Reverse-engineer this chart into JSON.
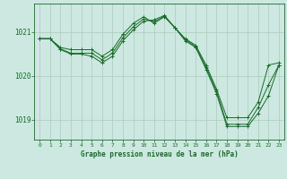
{
  "background_color": "#cce8e0",
  "grid_color": "#aaccbb",
  "line_color": "#1a6b2a",
  "title": "Graphe pression niveau de la mer (hPa)",
  "xlim": [
    -0.5,
    23.5
  ],
  "ylim": [
    1018.55,
    1021.65
  ],
  "yticks": [
    1019,
    1020,
    1021
  ],
  "xticks": [
    0,
    1,
    2,
    3,
    4,
    5,
    6,
    7,
    8,
    9,
    10,
    11,
    12,
    13,
    14,
    15,
    16,
    17,
    18,
    19,
    20,
    21,
    22,
    23
  ],
  "series1": {
    "x": [
      0,
      1,
      2,
      3,
      4,
      5,
      6,
      7,
      8,
      9,
      10,
      11,
      12,
      13,
      14,
      15,
      16,
      17,
      18,
      19,
      20,
      21,
      22,
      23
    ],
    "y": [
      1020.85,
      1020.85,
      1020.65,
      1020.6,
      1020.6,
      1020.6,
      1020.45,
      1020.6,
      1020.95,
      1021.2,
      1021.35,
      1021.2,
      1021.35,
      1021.1,
      1020.85,
      1020.7,
      1020.25,
      1019.7,
      1019.05,
      1019.05,
      1019.05,
      1019.4,
      1020.25,
      1020.3
    ]
  },
  "series2": {
    "x": [
      0,
      1,
      2,
      3,
      4,
      5,
      6,
      7,
      8,
      9,
      10,
      11,
      12,
      13,
      14,
      15,
      16,
      17,
      18,
      19,
      20,
      21,
      22,
      23
    ],
    "y": [
      1020.85,
      1020.85,
      1020.6,
      1020.5,
      1020.5,
      1020.45,
      1020.3,
      1020.45,
      1020.8,
      1021.05,
      1021.25,
      1021.28,
      1021.38,
      1021.1,
      1020.8,
      1020.65,
      1020.15,
      1019.6,
      1018.85,
      1018.85,
      1018.85,
      1019.15,
      1019.55,
      1020.25
    ]
  },
  "series3": {
    "x": [
      0,
      1,
      2,
      3,
      4,
      5,
      6,
      7,
      8,
      9,
      10,
      11,
      12,
      13,
      14,
      15,
      16,
      17,
      18,
      19,
      20,
      21,
      22,
      23
    ],
    "y": [
      1020.85,
      1020.85,
      1020.62,
      1020.52,
      1020.52,
      1020.52,
      1020.37,
      1020.52,
      1020.87,
      1021.12,
      1021.3,
      1021.24,
      1021.36,
      1021.1,
      1020.83,
      1020.67,
      1020.2,
      1019.65,
      1018.9,
      1018.9,
      1018.9,
      1019.28,
      1019.8,
      1020.25
    ]
  }
}
